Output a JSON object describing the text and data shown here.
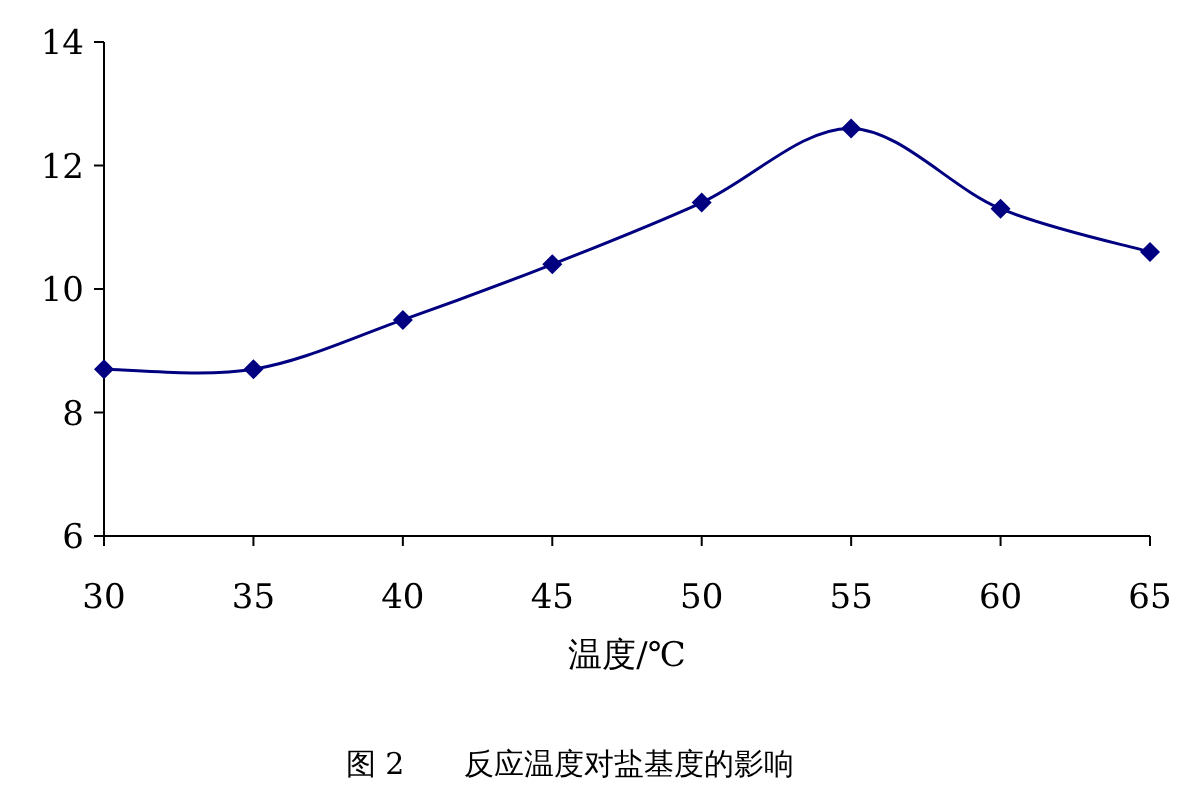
{
  "chart_data": {
    "type": "line",
    "title": "图 2　　反应温度对盐基度的影响",
    "xlabel": "温度/℃",
    "x": [
      30,
      35,
      40,
      45,
      50,
      55,
      60,
      65
    ],
    "series": [
      {
        "color": "#000080",
        "values": [
          8.7,
          8.7,
          9.5,
          10.4,
          11.4,
          12.6,
          11.3,
          10.6
        ]
      }
    ],
    "xlim": [
      30,
      65
    ],
    "xticks": [
      30,
      35,
      40,
      45,
      50,
      55,
      60,
      65
    ],
    "ylim": [
      6,
      14
    ],
    "yticks": [
      6,
      8,
      10,
      12,
      14
    ],
    "marker": "diamond"
  }
}
